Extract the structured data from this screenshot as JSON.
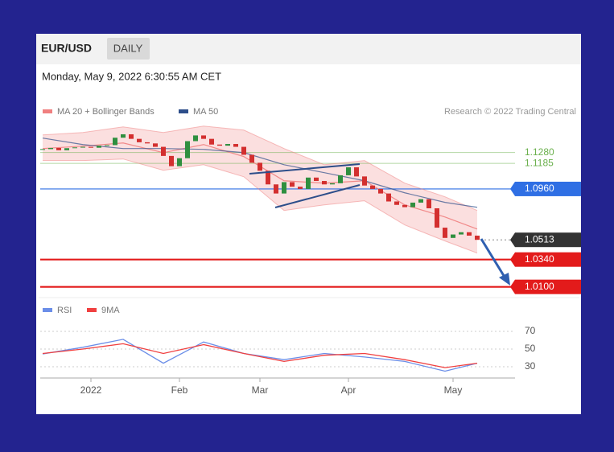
{
  "header": {
    "symbol": "EUR/USD",
    "period": "DAILY",
    "timestamp": "Monday, May 9, 2022 6:30:55 AM CET",
    "source": "Research © 2022 Trading Central"
  },
  "chart_data": [
    {
      "type": "candlestick",
      "up_color": "#2f8f3f",
      "down_color": "#d32f2f",
      "open": [
        1.1305,
        1.131,
        1.132,
        1.13,
        1.1318,
        1.1325,
        1.133,
        1.1322,
        1.134,
        1.1345,
        1.141,
        1.144,
        1.14,
        1.137,
        1.136,
        1.133,
        1.125,
        1.116,
        1.123,
        1.138,
        1.143,
        1.14,
        1.135,
        1.134,
        1.1355,
        1.133,
        1.126,
        1.119,
        1.112,
        1.1,
        1.092,
        1.102,
        1.098,
        1.096,
        1.106,
        1.103,
        1.1,
        1.101,
        1.108,
        1.115,
        1.107,
        1.099,
        1.096,
        1.092,
        1.085,
        1.082,
        1.08,
        1.084,
        1.087,
        1.079,
        1.062,
        1.053,
        1.056,
        1.058,
        1.055
      ],
      "close": [
        1.131,
        1.132,
        1.13,
        1.1318,
        1.1325,
        1.133,
        1.1322,
        1.134,
        1.1345,
        1.141,
        1.144,
        1.14,
        1.137,
        1.136,
        1.133,
        1.125,
        1.116,
        1.123,
        1.138,
        1.143,
        1.14,
        1.135,
        1.134,
        1.1355,
        1.133,
        1.126,
        1.119,
        1.112,
        1.1,
        1.092,
        1.102,
        1.098,
        1.096,
        1.106,
        1.103,
        1.1,
        1.101,
        1.108,
        1.115,
        1.107,
        1.099,
        1.096,
        1.092,
        1.085,
        1.082,
        1.08,
        1.084,
        1.087,
        1.079,
        1.062,
        1.053,
        1.056,
        1.058,
        1.055,
        1.0513
      ],
      "ylim": [
        1.002,
        1.156
      ],
      "xticks": [
        {
          "value": 6,
          "label": "2022"
        },
        {
          "value": 17,
          "label": "Feb"
        },
        {
          "value": 27,
          "label": "Mar"
        },
        {
          "value": 38,
          "label": "Apr"
        },
        {
          "value": 51,
          "label": "May"
        }
      ],
      "overlay_x": [
        0,
        5,
        10,
        15,
        20,
        25,
        30,
        35,
        40,
        45,
        50,
        54
      ],
      "overlays": [
        {
          "name": "MA 20 + Bollinger Bands",
          "color": "#f08080",
          "values": [
            1.1315,
            1.1336,
            1.1364,
            1.1279,
            1.135,
            1.1244,
            1.1032,
            1.1011,
            1.1032,
            1.082,
            1.0714,
            1.0608
          ],
          "upper": [
            1.1435,
            1.1456,
            1.1505,
            1.1456,
            1.1512,
            1.1477,
            1.1315,
            1.1173,
            1.1209,
            1.1011,
            1.0891,
            1.0771
          ],
          "lower": [
            1.1209,
            1.1209,
            1.1223,
            1.1124,
            1.1173,
            1.1067,
            1.0771,
            1.082,
            1.0856,
            1.0644,
            1.0503,
            1.0397
          ]
        },
        {
          "name": "MA 50",
          "color": "#2d4e8a",
          "values": [
            1.1407,
            1.135,
            1.1315,
            1.1315,
            1.1308,
            1.1279,
            1.1173,
            1.1103,
            1.1032,
            1.0926,
            1.0842,
            1.0799
          ]
        }
      ],
      "levels": [
        {
          "value": 1.128,
          "label": "1.1280",
          "color": "#6ab04c",
          "style": "text"
        },
        {
          "value": 1.1185,
          "label": "1.1185",
          "color": "#6ab04c",
          "style": "text"
        },
        {
          "value": 1.096,
          "label": "1.0960",
          "color": "#2f6fe4",
          "style": "box"
        },
        {
          "value": 1.0513,
          "label": "1.0513",
          "color": "#333333",
          "style": "dotted"
        },
        {
          "value": 1.034,
          "label": "1.0340",
          "color": "#e31b1b",
          "style": "box"
        },
        {
          "value": 1.01,
          "label": "1.0100",
          "color": "#e31b1b",
          "style": "box"
        }
      ]
    },
    {
      "type": "line",
      "x": [
        0,
        5,
        10,
        15,
        20,
        25,
        30,
        35,
        40,
        45,
        50,
        54
      ],
      "series": [
        {
          "name": "RSI",
          "color": "#6b8ee8",
          "values": [
            44.5,
            52,
            61,
            34,
            58,
            45,
            38,
            45,
            41,
            36,
            25,
            34
          ]
        },
        {
          "name": "9MA",
          "color": "#f04040",
          "values": [
            45,
            50,
            56,
            45,
            55,
            45,
            36,
            43,
            45,
            38,
            29,
            34
          ]
        }
      ],
      "ylim": [
        20,
        80
      ],
      "yticks": [
        70,
        50,
        30
      ]
    }
  ]
}
